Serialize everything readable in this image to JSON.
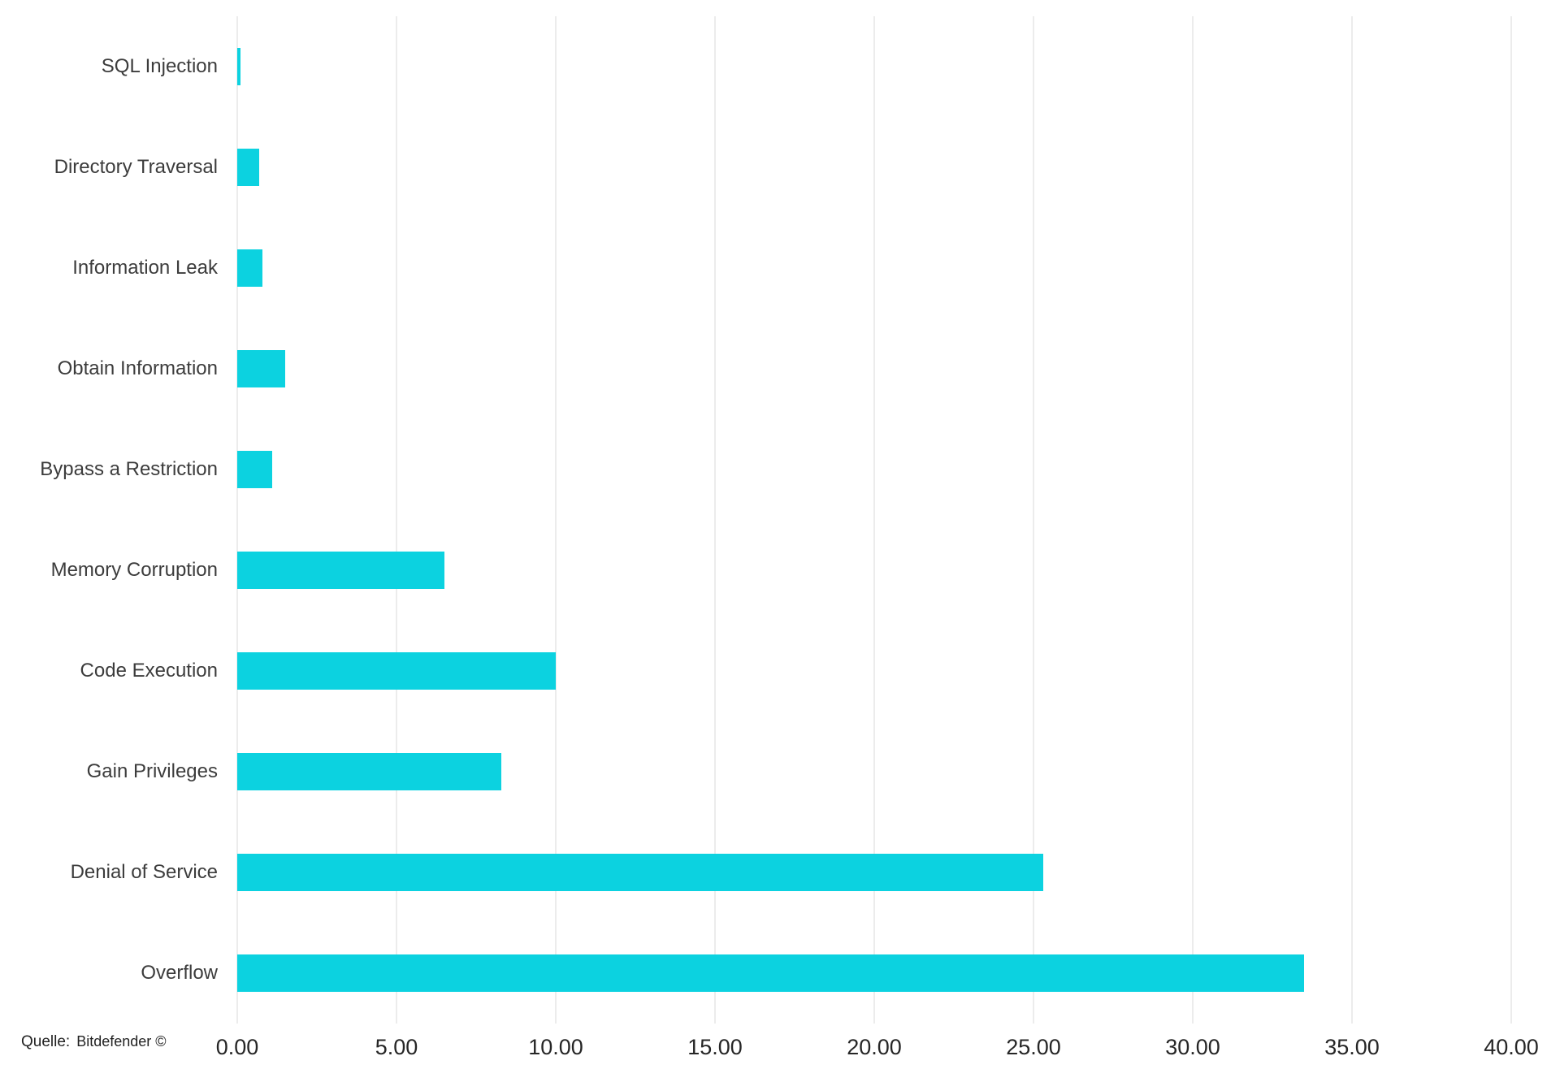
{
  "chart_data": {
    "type": "bar",
    "orientation": "horizontal",
    "title": "",
    "xlabel": "",
    "ylabel": "",
    "categories": [
      "SQL Injection",
      "Directory Traversal",
      "Information Leak",
      "Obtain Information",
      "Bypass a Restriction",
      "Memory Corruption",
      "Code Execution",
      "Gain Privileges",
      "Denial of Service",
      "Overflow"
    ],
    "values": [
      0.1,
      0.7,
      0.8,
      1.5,
      1.1,
      6.5,
      10.0,
      8.3,
      25.3,
      33.5
    ],
    "xlim": [
      0,
      40
    ],
    "x_ticks": [
      "0.00",
      "5.00",
      "10.00",
      "15.00",
      "20.00",
      "25.00",
      "30.00",
      "35.00",
      "40.00"
    ],
    "bar_color": "#0cd2e0",
    "grid": true,
    "legend": false
  },
  "source": {
    "label": "Quelle:",
    "value": "Bitdefender ©"
  }
}
